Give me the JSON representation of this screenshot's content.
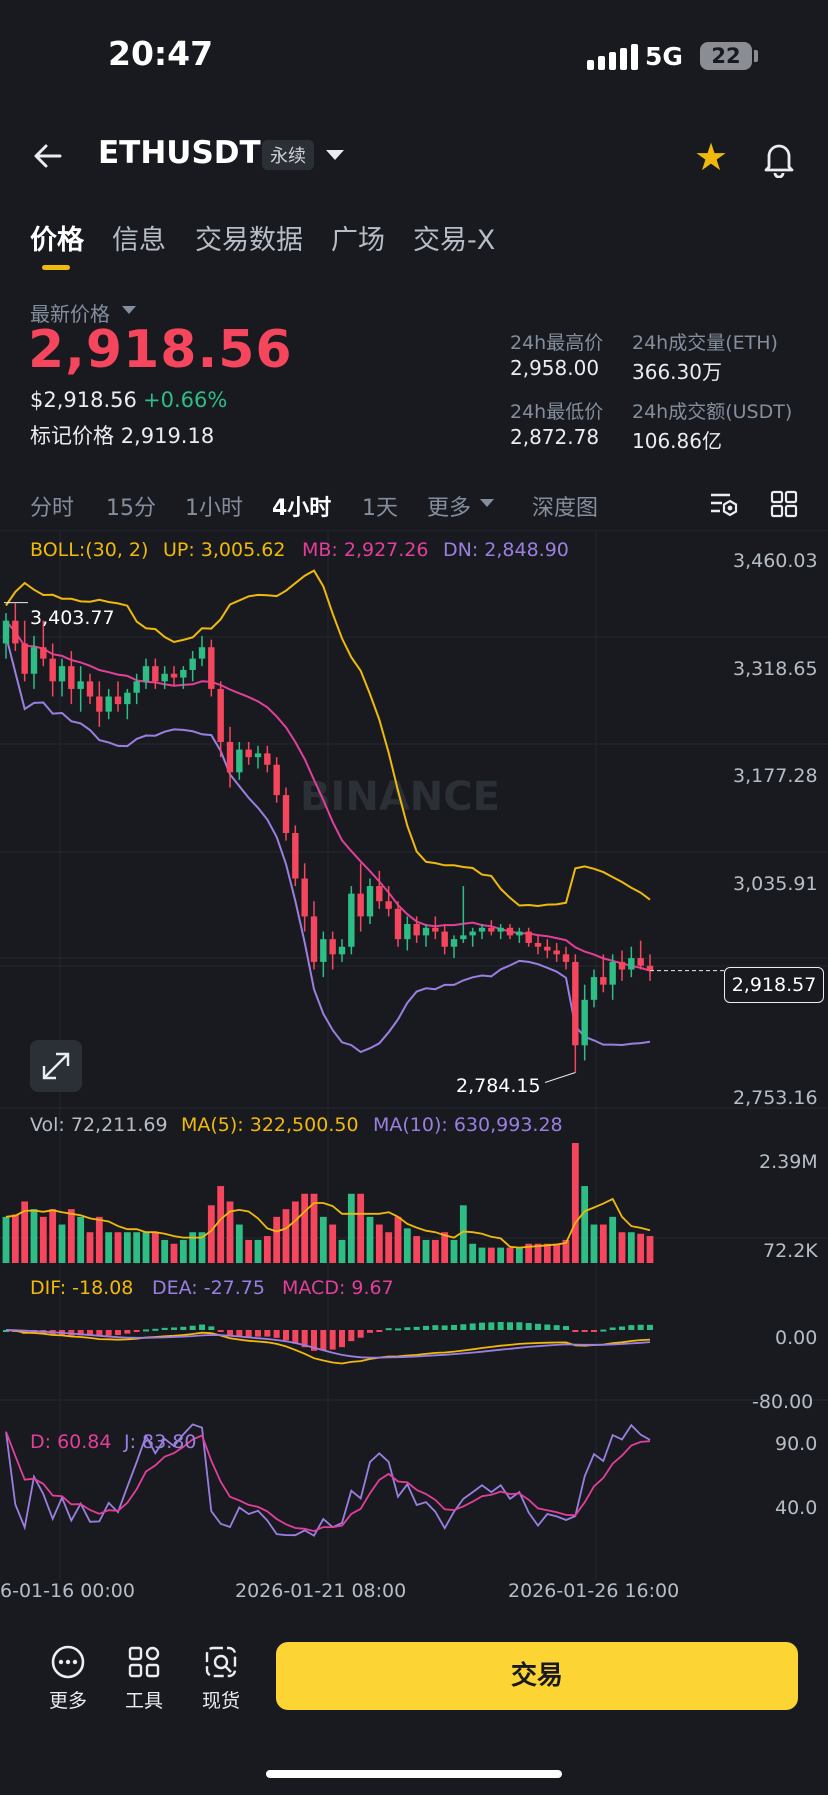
{
  "status_bar": {
    "time": "20:47",
    "network": "5G",
    "battery": "22"
  },
  "header": {
    "pair": "ETHUSDT",
    "contract_type": "永续",
    "favorite": true
  },
  "tabs": [
    {
      "label": "价格",
      "active": true
    },
    {
      "label": "信息",
      "active": false
    },
    {
      "label": "交易数据",
      "active": false
    },
    {
      "label": "广场",
      "active": false
    },
    {
      "label": "交易-X",
      "active": false
    }
  ],
  "price_block": {
    "latest_label": "最新价格",
    "price": "2,918.56",
    "usd_price": "$2,918.56",
    "change": "+0.66%",
    "mark_label": "标记价格",
    "mark_price": "2,919.18"
  },
  "stats": [
    {
      "label": "24h最高价",
      "value": "2,958.00"
    },
    {
      "label": "24h成交量(ETH)",
      "value": "366.30万"
    },
    {
      "label": "24h最低价",
      "value": "2,872.78"
    },
    {
      "label": "24h成交额(USDT)",
      "value": "106.86亿"
    }
  ],
  "intervals": [
    {
      "label": "分时",
      "active": false
    },
    {
      "label": "15分",
      "active": false
    },
    {
      "label": "1小时",
      "active": false
    },
    {
      "label": "4小时",
      "active": true
    },
    {
      "label": "1天",
      "active": false
    },
    {
      "label": "更多",
      "active": false
    },
    {
      "label": "深度图",
      "active": false
    }
  ],
  "boll": {
    "label": "BOLL:(30, 2)",
    "up": "UP: 3,005.62",
    "mb": "MB: 2,927.26",
    "dn": "DN: 2,848.90"
  },
  "vol": {
    "vol": "Vol: 72,211.69",
    "ma5": "MA(5): 322,500.50",
    "ma10": "MA(10): 630,993.28"
  },
  "macd": {
    "dif": "DIF: -18.08",
    "dea": "DEA: -27.75",
    "macd": "MACD: 9.67"
  },
  "kdj": {
    "d": "D: 60.84",
    "j": "J: 83.80"
  },
  "watermark": "BINANCE",
  "colors": {
    "up": "#2ebd85",
    "down": "#f6465d",
    "boll_up": "#f0b90b",
    "boll_mb": "#e23f9a",
    "boll_dn": "#9b7fe0",
    "accent": "#fcd535"
  },
  "chart_data": {
    "type": "candlestick",
    "price_axis": [
      "3,460.03",
      "3,318.65",
      "3,177.28",
      "3,035.91",
      "2,753.16"
    ],
    "ylim": [
      2753.16,
      3460.03
    ],
    "current_price_label": "2,918.57",
    "high_marker": "3,403.77",
    "low_marker": "2,784.15",
    "vol_axis": [
      "2.39M",
      "72.2K"
    ],
    "macd_axis": [
      "0.00",
      "-80.00"
    ],
    "kdj_axis": [
      "90.0",
      "40.0"
    ],
    "time_axis": [
      "6-01-16 00:00",
      "2026-01-21 08:00",
      "2026-01-26 16:00"
    ],
    "candles": [
      [
        3350,
        3390,
        3330,
        3380
      ],
      [
        3380,
        3403,
        3340,
        3350
      ],
      [
        3350,
        3380,
        3300,
        3310
      ],
      [
        3310,
        3360,
        3290,
        3345
      ],
      [
        3345,
        3380,
        3320,
        3330
      ],
      [
        3330,
        3350,
        3280,
        3300
      ],
      [
        3300,
        3330,
        3280,
        3320
      ],
      [
        3320,
        3340,
        3270,
        3290
      ],
      [
        3290,
        3320,
        3260,
        3300
      ],
      [
        3300,
        3310,
        3270,
        3280
      ],
      [
        3280,
        3300,
        3240,
        3260
      ],
      [
        3260,
        3290,
        3250,
        3280
      ],
      [
        3280,
        3300,
        3260,
        3270
      ],
      [
        3270,
        3290,
        3250,
        3285
      ],
      [
        3285,
        3310,
        3270,
        3300
      ],
      [
        3300,
        3330,
        3290,
        3320
      ],
      [
        3320,
        3330,
        3290,
        3300
      ],
      [
        3300,
        3320,
        3290,
        3310
      ],
      [
        3310,
        3320,
        3295,
        3305
      ],
      [
        3305,
        3320,
        3290,
        3315
      ],
      [
        3315,
        3340,
        3300,
        3330
      ],
      [
        3330,
        3360,
        3320,
        3345
      ],
      [
        3345,
        3355,
        3280,
        3290
      ],
      [
        3290,
        3300,
        3200,
        3220
      ],
      [
        3220,
        3240,
        3160,
        3180
      ],
      [
        3180,
        3220,
        3170,
        3210
      ],
      [
        3210,
        3220,
        3190,
        3200
      ],
      [
        3200,
        3215,
        3185,
        3205
      ],
      [
        3205,
        3215,
        3180,
        3190
      ],
      [
        3190,
        3200,
        3140,
        3150
      ],
      [
        3150,
        3160,
        3090,
        3100
      ],
      [
        3100,
        3110,
        3030,
        3040
      ],
      [
        3040,
        3060,
        2970,
        2990
      ],
      [
        2990,
        3010,
        2920,
        2930
      ],
      [
        2930,
        2970,
        2910,
        2960
      ],
      [
        2960,
        2970,
        2920,
        2940
      ],
      [
        2940,
        2960,
        2930,
        2950
      ],
      [
        2950,
        3030,
        2940,
        3020
      ],
      [
        3020,
        3060,
        2970,
        2990
      ],
      [
        2990,
        3040,
        2980,
        3030
      ],
      [
        3030,
        3050,
        3000,
        3010
      ],
      [
        3010,
        3030,
        2990,
        3000
      ],
      [
        3000,
        3010,
        2950,
        2960
      ],
      [
        2960,
        2990,
        2945,
        2980
      ],
      [
        2980,
        2990,
        2955,
        2965
      ],
      [
        2965,
        2980,
        2950,
        2975
      ],
      [
        2975,
        2990,
        2960,
        2970
      ],
      [
        2970,
        2980,
        2940,
        2950
      ],
      [
        2950,
        2965,
        2935,
        2960
      ],
      [
        2960,
        3030,
        2955,
        2965
      ],
      [
        2965,
        2975,
        2950,
        2970
      ],
      [
        2970,
        2980,
        2960,
        2975
      ],
      [
        2975,
        2985,
        2965,
        2970
      ],
      [
        2970,
        2980,
        2960,
        2975
      ],
      [
        2975,
        2980,
        2960,
        2965
      ],
      [
        2965,
        2975,
        2955,
        2970
      ],
      [
        2970,
        2975,
        2950,
        2955
      ],
      [
        2955,
        2965,
        2940,
        2950
      ],
      [
        2950,
        2960,
        2935,
        2945
      ],
      [
        2945,
        2955,
        2930,
        2940
      ],
      [
        2940,
        2950,
        2920,
        2930
      ],
      [
        2930,
        2940,
        2784,
        2820
      ],
      [
        2820,
        2900,
        2800,
        2880
      ],
      [
        2880,
        2920,
        2870,
        2910
      ],
      [
        2910,
        2940,
        2890,
        2900
      ],
      [
        2900,
        2940,
        2880,
        2930
      ],
      [
        2930,
        2945,
        2905,
        2920
      ],
      [
        2920,
        2950,
        2910,
        2935
      ],
      [
        2935,
        2958,
        2920,
        2925
      ],
      [
        2925,
        2940,
        2905,
        2918
      ]
    ]
  }
}
